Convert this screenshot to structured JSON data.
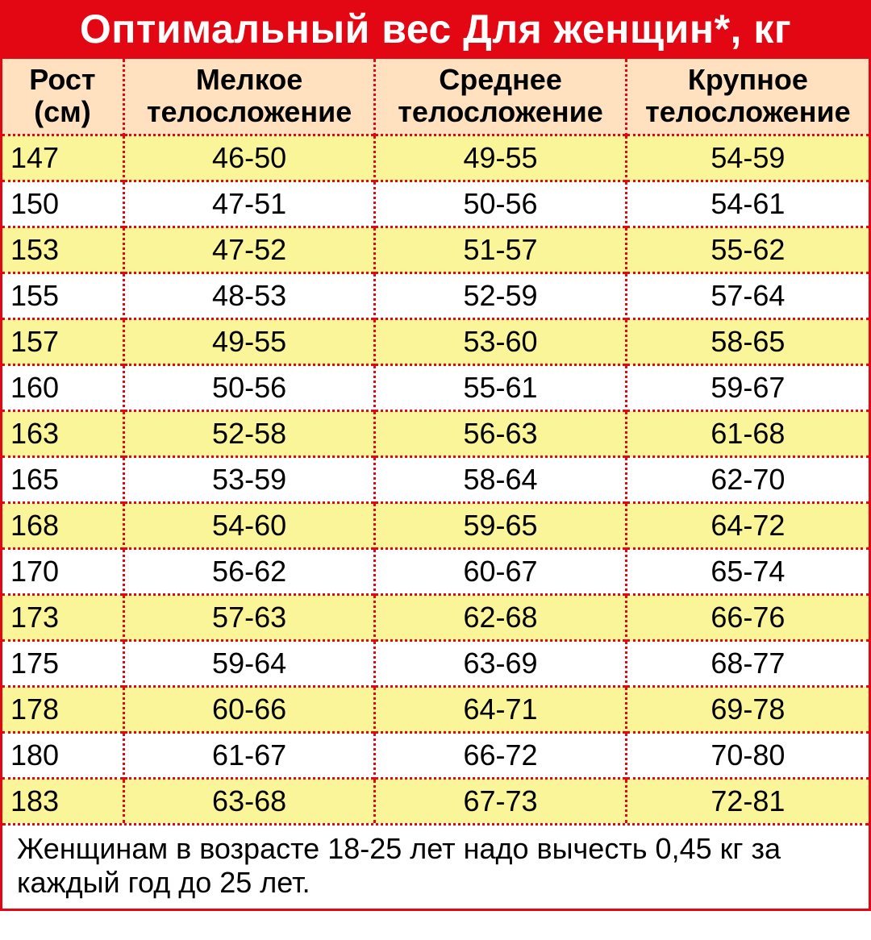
{
  "title": "Оптимальный вес Для женщин*, кг",
  "title_bg": "#e30613",
  "title_color": "#ffffff",
  "title_fontsize": 50,
  "header_bg": "#ffe1bf",
  "header_fontsize": 36,
  "header_color": "#000000",
  "body_fontsize": 36,
  "body_color": "#000000",
  "row_alt_bg": "#fbf59a",
  "row_bg": "#ffffff",
  "sep_color": "#e30613",
  "sep_width": 3,
  "footnote_fontsize": 36,
  "columns": [
    {
      "line1": "Рост",
      "line2": "(см)",
      "width": "14%"
    },
    {
      "line1": "Мелкое",
      "line2": "телосложение",
      "width": "29%"
    },
    {
      "line1": "Среднее",
      "line2": "телосложение",
      "width": "29%"
    },
    {
      "line1": "Крупное",
      "line2": "телосложение",
      "width": "28%"
    }
  ],
  "rows": [
    [
      "147",
      "46-50",
      "49-55",
      "54-59"
    ],
    [
      "150",
      "47-51",
      "50-56",
      "54-61"
    ],
    [
      "153",
      "47-52",
      "51-57",
      "55-62"
    ],
    [
      "155",
      "48-53",
      "52-59",
      "57-64"
    ],
    [
      "157",
      "49-55",
      "53-60",
      "58-65"
    ],
    [
      "160",
      "50-56",
      "55-61",
      "59-67"
    ],
    [
      "163",
      "52-58",
      "56-63",
      "61-68"
    ],
    [
      "165",
      "53-59",
      "58-64",
      "62-70"
    ],
    [
      "168",
      "54-60",
      "59-65",
      "64-72"
    ],
    [
      "170",
      "56-62",
      "60-67",
      "65-74"
    ],
    [
      "173",
      "57-63",
      "62-68",
      "66-76"
    ],
    [
      "175",
      "59-64",
      "63-69",
      "68-77"
    ],
    [
      "178",
      "60-66",
      "64-71",
      "69-78"
    ],
    [
      "180",
      "61-67",
      "66-72",
      "70-80"
    ],
    [
      "183",
      "63-68",
      "67-73",
      "72-81"
    ]
  ],
  "footnote": "Женщинам в возрасте 18-25 лет надо вычесть 0,45 кг за каждый год до 25 лет."
}
